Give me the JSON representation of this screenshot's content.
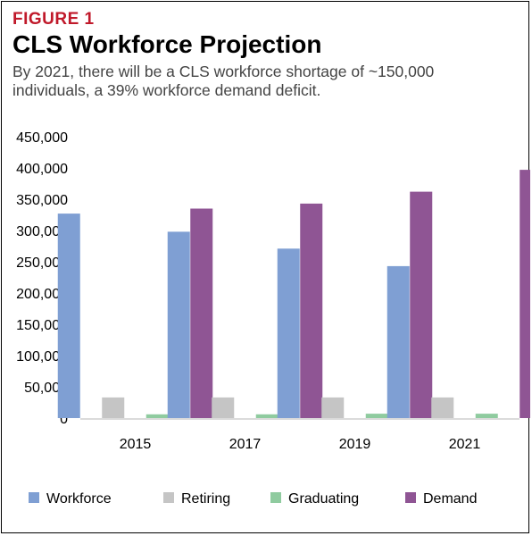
{
  "figure": {
    "label": "FIGURE 1",
    "title": "CLS Workforce Projection",
    "subtitle": "By 2021, there will be a CLS workforce shortage of ~150,000 individuals, a 39% workforce demand deficit."
  },
  "chart_data": {
    "type": "bar",
    "categories": [
      "2015",
      "2017",
      "2019",
      "2021"
    ],
    "series": [
      {
        "name": "Workforce",
        "color": "#7f9fd3",
        "values": [
          327000,
          298000,
          271000,
          243000
        ]
      },
      {
        "name": "Retiring",
        "color": "#c5c5c5",
        "values": [
          33000,
          33000,
          33000,
          33000
        ]
      },
      {
        "name": "Graduating",
        "color": "#8fcb9f",
        "values": [
          6000,
          6000,
          7000,
          7000
        ]
      },
      {
        "name": "Demand",
        "color": "#8f5594",
        "values": [
          335000,
          343000,
          362000,
          397000
        ]
      }
    ],
    "ylim": [
      0,
      450000
    ],
    "yticks": [
      0,
      50000,
      100000,
      150000,
      200000,
      250000,
      300000,
      350000,
      400000,
      450000
    ],
    "ytick_labels": [
      "0",
      "50,000",
      "100,000",
      "150,000",
      "200,000",
      "250,000",
      "300,000",
      "350,000",
      "400,000",
      "450,000"
    ],
    "grid": false,
    "legend_position": "bottom",
    "xlabel": "",
    "ylabel": "",
    "title": "CLS Workforce Projection"
  }
}
